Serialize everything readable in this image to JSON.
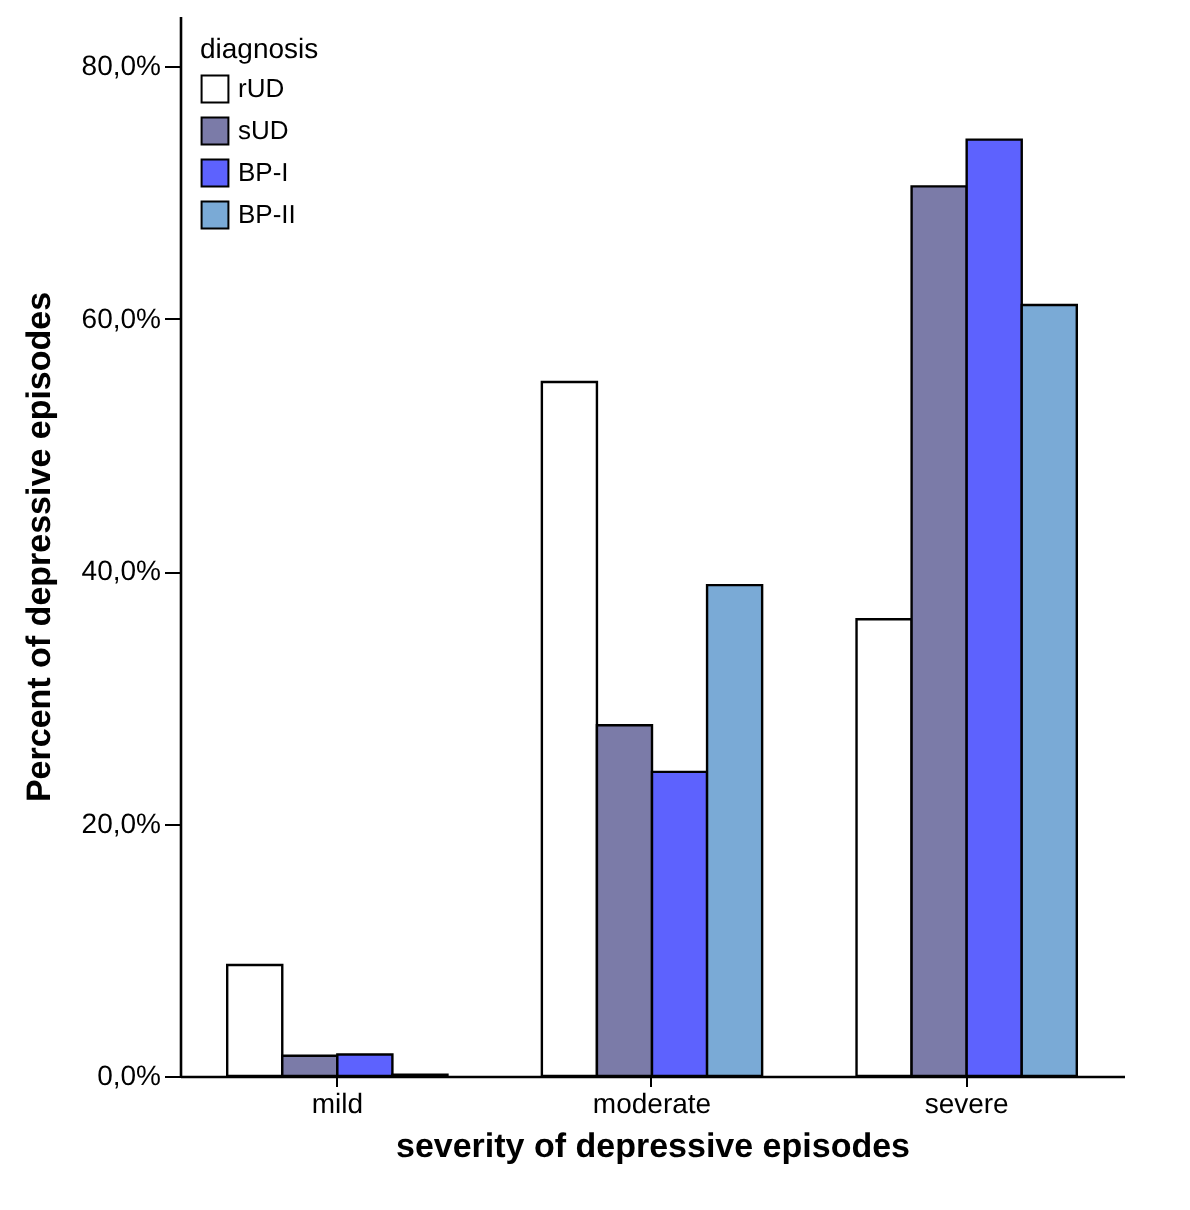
{
  "chart_data": {
    "type": "bar",
    "xlabel": "severity of depressive episodes",
    "ylabel": "Percent of depressive episodes",
    "legend_title": "diagnosis",
    "legend": "top left",
    "grid": false,
    "categories": [
      "mild",
      "moderate",
      "severe"
    ],
    "ylim": [
      0,
      84
    ],
    "yticks": [
      {
        "value": 0,
        "label": "0,0%"
      },
      {
        "value": 20,
        "label": "20,0%"
      },
      {
        "value": 40,
        "label": "40,0%"
      },
      {
        "value": 60,
        "label": "60,0%"
      },
      {
        "value": 80,
        "label": "80,0%"
      }
    ],
    "series": [
      {
        "name": "rUD",
        "color": "#ffffff",
        "values": [
          8.8,
          55.0,
          36.2
        ]
      },
      {
        "name": "sUD",
        "color": "#7b7ba8",
        "values": [
          1.6,
          27.8,
          70.5
        ]
      },
      {
        "name": "BP-I",
        "color": "#5d62fe",
        "values": [
          1.7,
          24.1,
          74.2
        ]
      },
      {
        "name": "BP-II",
        "color": "#7aaad6",
        "values": [
          0.1,
          38.9,
          61.1
        ]
      }
    ]
  }
}
